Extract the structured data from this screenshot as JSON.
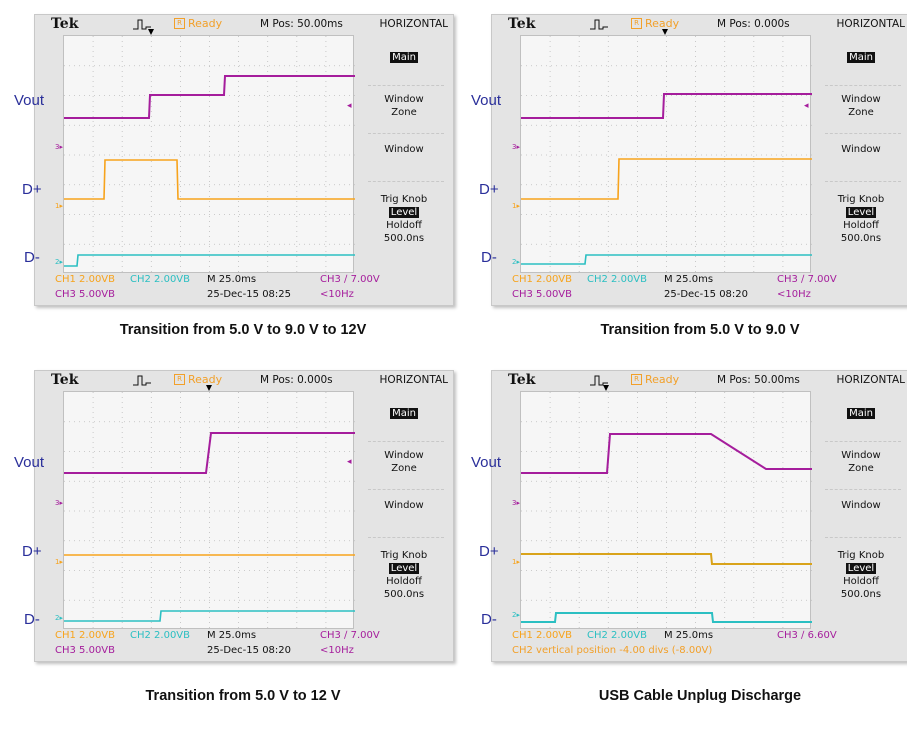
{
  "colors": {
    "ch1": "#f7a31c",
    "ch2": "#2bbfc2",
    "ch3": "#a51d9c",
    "label_blue": "#2a2f9a",
    "ready_orange": "#f2a02a"
  },
  "signal_labels": {
    "vout": "Vout",
    "dplus": "D+",
    "dminus": "D-"
  },
  "panels": [
    {
      "top": {
        "brand": "Tek",
        "ready": "Ready",
        "ready_box": "R",
        "mpos": "M Pos: 50.00ms",
        "menu_title": "HORIZONTAL"
      },
      "menu": {
        "main": "Main",
        "window_zone_1": "Window",
        "window_zone_2": "Zone",
        "window": "Window",
        "trig_knob": "Trig Knob",
        "level": "Level",
        "holdoff": "Holdoff",
        "holdoff_value": "500.0ns"
      },
      "markers": {
        "ch3": "3",
        "ch1": "1",
        "ch2": "2"
      },
      "status": {
        "ch1": "CH1  2.00VB",
        "ch2": "CH2  2.00VB",
        "ch3": "CH3  5.00VB",
        "mtime": "M 25.0ms",
        "date": "25-Dec-15 08:25",
        "trig": "CH3 ∕ 7.00V",
        "freq": "<10Hz",
        "note": ""
      },
      "caption": "Transition from 5.0 V to 9.0 V to 12V"
    },
    {
      "top": {
        "brand": "Tek",
        "ready": "Ready",
        "ready_box": "R",
        "mpos": "M Pos: 0.000s",
        "menu_title": "HORIZONTAL"
      },
      "menu": {
        "main": "Main",
        "window_zone_1": "Window",
        "window_zone_2": "Zone",
        "window": "Window",
        "trig_knob": "Trig Knob",
        "level": "Level",
        "holdoff": "Holdoff",
        "holdoff_value": "500.0ns"
      },
      "markers": {
        "ch3": "3",
        "ch1": "1",
        "ch2": "2"
      },
      "status": {
        "ch1": "CH1  2.00VB",
        "ch2": "CH2  2.00VB",
        "ch3": "CH3  5.00VB",
        "mtime": "M 25.0ms",
        "date": "25-Dec-15 08:20",
        "trig": "CH3 ∕ 7.00V",
        "freq": "<10Hz",
        "note": ""
      },
      "caption": "Transition from 5.0 V to 9.0 V"
    },
    {
      "top": {
        "brand": "Tek",
        "ready": "Ready",
        "ready_box": "R",
        "mpos": "M Pos: 0.000s",
        "menu_title": "HORIZONTAL"
      },
      "menu": {
        "main": "Main",
        "window_zone_1": "Window",
        "window_zone_2": "Zone",
        "window": "Window",
        "trig_knob": "Trig Knob",
        "level": "Level",
        "holdoff": "Holdoff",
        "holdoff_value": "500.0ns"
      },
      "markers": {
        "ch3": "3",
        "ch1": "1",
        "ch2": "2"
      },
      "status": {
        "ch1": "CH1  2.00VB",
        "ch2": "CH2  2.00VB",
        "ch3": "CH3  5.00VB",
        "mtime": "M 25.0ms",
        "date": "25-Dec-15 08:20",
        "trig": "CH3 ∕ 7.00V",
        "freq": "<10Hz",
        "note": ""
      },
      "caption": "Transition from 5.0 V to 12 V"
    },
    {
      "top": {
        "brand": "Tek",
        "ready": "Ready",
        "ready_box": "R",
        "mpos": "M Pos: 50.00ms",
        "menu_title": "HORIZONTAL"
      },
      "menu": {
        "main": "Main",
        "window_zone_1": "Window",
        "window_zone_2": "Zone",
        "window": "Window",
        "trig_knob": "Trig Knob",
        "level": "Level",
        "holdoff": "Holdoff",
        "holdoff_value": "500.0ns"
      },
      "markers": {
        "ch3": "3",
        "ch1": "1",
        "ch2": "2"
      },
      "status": {
        "ch1": "CH1  2.00VB",
        "ch2": "CH2  2.00VB",
        "ch3": "",
        "mtime": "M 25.0ms",
        "date": "",
        "trig": "CH3 ∕ 6.60V",
        "freq": "",
        "note": "CH2 vertical position -4.00 divs (-8.00V)"
      },
      "caption": "USB Cable Unplug Discharge"
    }
  ]
}
